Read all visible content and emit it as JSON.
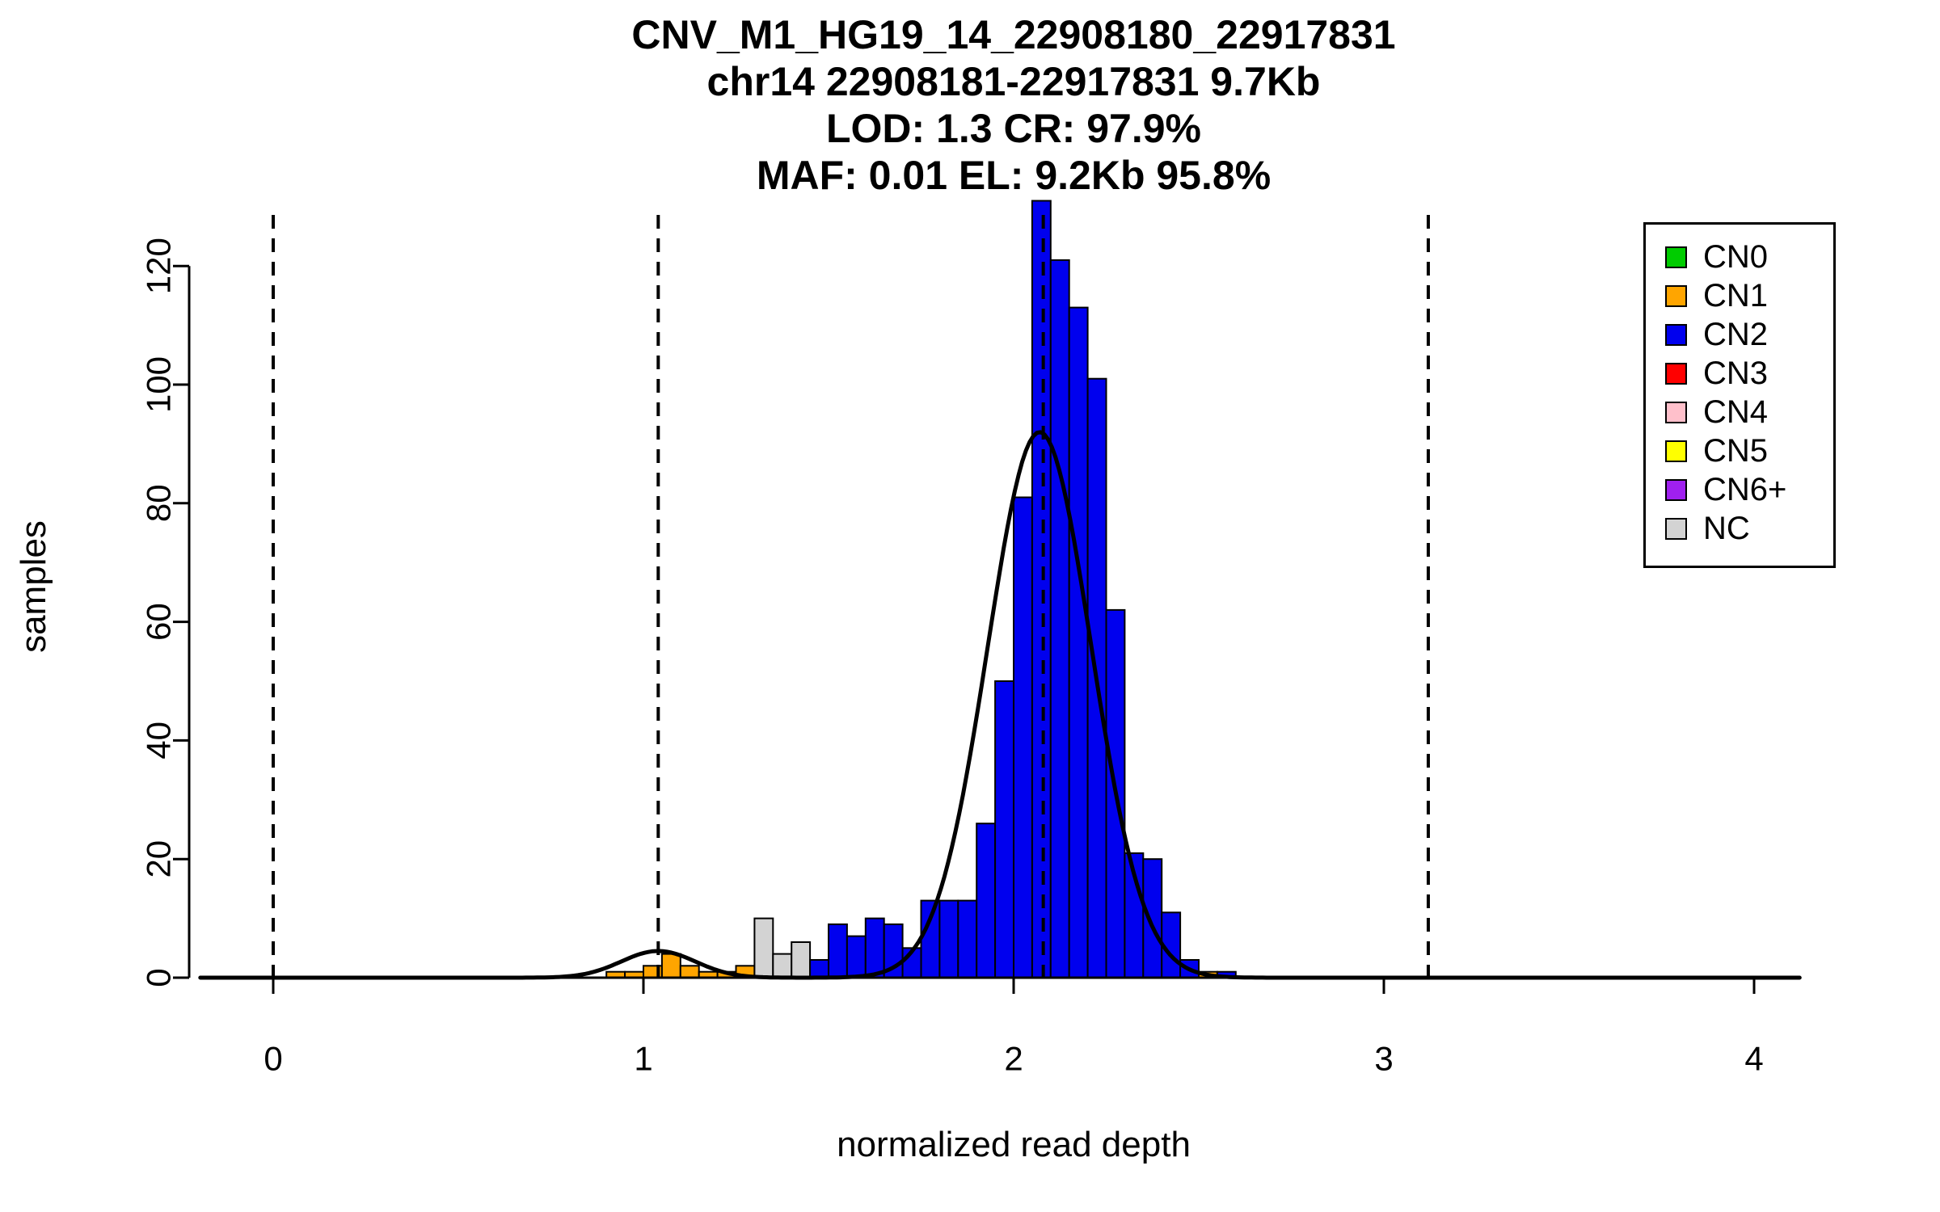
{
  "chart_data": {
    "type": "bar",
    "title_lines": [
      "CNV_M1_HG19_14_22908180_22917831",
      "chr14 22908181-22917831 9.7Kb",
      "LOD: 1.3 CR: 97.9%",
      "MAF: 0.01 EL: 9.2Kb 95.8%"
    ],
    "xlabel": "normalized read depth",
    "ylabel": "samples",
    "xticks": [
      0,
      1,
      2,
      3,
      4
    ],
    "yticks": [
      0,
      20,
      40,
      60,
      80,
      100,
      120
    ],
    "xlim": [
      -0.197,
      4.125
    ],
    "ylim": [
      0,
      131
    ],
    "bin_width": 0.05,
    "dashed_guides_x": [
      0,
      1.04,
      2.08,
      3.12
    ],
    "grid": "off",
    "legend_position": "top-right",
    "bars": [
      {
        "x": 0.9,
        "h": 1,
        "cn": "CN1"
      },
      {
        "x": 0.95,
        "h": 1,
        "cn": "CN1"
      },
      {
        "x": 1.0,
        "h": 2,
        "cn": "CN1"
      },
      {
        "x": 1.05,
        "h": 4,
        "cn": "CN1"
      },
      {
        "x": 1.1,
        "h": 2,
        "cn": "CN1"
      },
      {
        "x": 1.15,
        "h": 1,
        "cn": "CN1"
      },
      {
        "x": 1.2,
        "h": 1,
        "cn": "CN1"
      },
      {
        "x": 1.25,
        "h": 2,
        "cn": "CN1"
      },
      {
        "x": 1.3,
        "h": 10,
        "cn": "NC"
      },
      {
        "x": 1.35,
        "h": 4,
        "cn": "NC"
      },
      {
        "x": 1.4,
        "h": 6,
        "cn": "NC"
      },
      {
        "x": 1.45,
        "h": 3,
        "cn": "CN2"
      },
      {
        "x": 1.5,
        "h": 9,
        "cn": "CN2"
      },
      {
        "x": 1.55,
        "h": 7,
        "cn": "CN2"
      },
      {
        "x": 1.6,
        "h": 10,
        "cn": "CN2"
      },
      {
        "x": 1.65,
        "h": 9,
        "cn": "CN2"
      },
      {
        "x": 1.7,
        "h": 5,
        "cn": "CN2"
      },
      {
        "x": 1.75,
        "h": 13,
        "cn": "CN2"
      },
      {
        "x": 1.8,
        "h": 13,
        "cn": "CN2"
      },
      {
        "x": 1.85,
        "h": 13,
        "cn": "CN2"
      },
      {
        "x": 1.9,
        "h": 26,
        "cn": "CN2"
      },
      {
        "x": 1.95,
        "h": 50,
        "cn": "CN2"
      },
      {
        "x": 2.0,
        "h": 81,
        "cn": "CN2"
      },
      {
        "x": 2.05,
        "h": 131,
        "cn": "CN2"
      },
      {
        "x": 2.1,
        "h": 121,
        "cn": "CN2"
      },
      {
        "x": 2.15,
        "h": 113,
        "cn": "CN2"
      },
      {
        "x": 2.2,
        "h": 101,
        "cn": "CN2"
      },
      {
        "x": 2.25,
        "h": 62,
        "cn": "CN2"
      },
      {
        "x": 2.3,
        "h": 21,
        "cn": "CN2"
      },
      {
        "x": 2.35,
        "h": 20,
        "cn": "CN2"
      },
      {
        "x": 2.4,
        "h": 11,
        "cn": "CN2"
      },
      {
        "x": 2.45,
        "h": 3,
        "cn": "CN2"
      },
      {
        "x": 2.5,
        "h": 1,
        "cn": "CN1"
      },
      {
        "x": 2.55,
        "h": 1,
        "cn": "CN2"
      }
    ],
    "density_components": [
      {
        "mean": 1.04,
        "sd": 0.1,
        "peak": 4.5
      },
      {
        "mean": 2.07,
        "sd": 0.14,
        "peak": 92
      }
    ],
    "legend": [
      {
        "label": "CN0",
        "color": "#00CC00"
      },
      {
        "label": "CN1",
        "color": "#FFA500"
      },
      {
        "label": "CN2",
        "color": "#0000EE"
      },
      {
        "label": "CN3",
        "color": "#FF0000"
      },
      {
        "label": "CN4",
        "color": "#FFC0CB"
      },
      {
        "label": "CN5",
        "color": "#FFFF00"
      },
      {
        "label": "CN6+",
        "color": "#A020F0"
      },
      {
        "label": "NC",
        "color": "#D3D3D3"
      }
    ],
    "colors": {
      "curve": "#000000",
      "axis": "#000000",
      "guide": "#000000"
    }
  }
}
